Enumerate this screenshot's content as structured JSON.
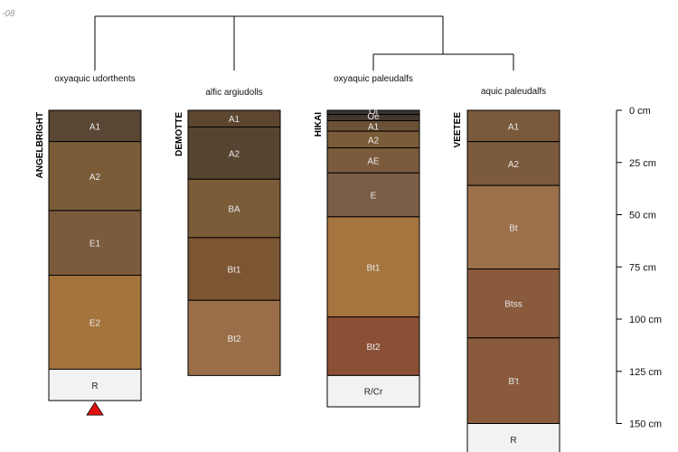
{
  "corner_label": "-08",
  "taxa": [
    {
      "label": "oxyaquic udorthents"
    },
    {
      "label": "alfic argiudolls"
    },
    {
      "label": "oxyaquic paleudalfs"
    },
    {
      "label": "aquic paleudalfs"
    }
  ],
  "profiles": [
    {
      "name": "ANGELBRIGHT",
      "horizons": [
        {
          "name": "A1",
          "top": 0,
          "bottom": 15,
          "color": "#5a4633"
        },
        {
          "name": "A2",
          "top": 15,
          "bottom": 48,
          "color": "#7a5c38"
        },
        {
          "name": "E1",
          "top": 48,
          "bottom": 79,
          "color": "#7c5a3c"
        },
        {
          "name": "E2",
          "top": 79,
          "bottom": 124,
          "color": "#a5743d"
        },
        {
          "name": "R",
          "top": 124,
          "bottom": 139,
          "color": "#f2f2f2"
        }
      ],
      "marker": "red-triangle"
    },
    {
      "name": "DEMOTTE",
      "horizons": [
        {
          "name": "A1",
          "top": 0,
          "bottom": 8,
          "color": "#5d4630"
        },
        {
          "name": "A2",
          "top": 8,
          "bottom": 33,
          "color": "#574430"
        },
        {
          "name": "BA",
          "top": 33,
          "bottom": 61,
          "color": "#7a5c38"
        },
        {
          "name": "Bt1",
          "top": 61,
          "bottom": 91,
          "color": "#7c5533"
        },
        {
          "name": "Bt2",
          "top": 91,
          "bottom": 127,
          "color": "#9a6e48"
        }
      ]
    },
    {
      "name": "HIKAI",
      "horizons": [
        {
          "name": "Oi",
          "top": 0,
          "bottom": 2,
          "color": "#3a3330"
        },
        {
          "name": "Oe",
          "top": 2,
          "bottom": 5,
          "color": "#433730"
        },
        {
          "name": "A1",
          "top": 5,
          "bottom": 10,
          "color": "#6b5236"
        },
        {
          "name": "A2",
          "top": 10,
          "bottom": 18,
          "color": "#7a5c38"
        },
        {
          "name": "AE",
          "top": 18,
          "bottom": 30,
          "color": "#7c5a3c"
        },
        {
          "name": "E",
          "top": 30,
          "bottom": 51,
          "color": "#7a5e48"
        },
        {
          "name": "Bt1",
          "top": 51,
          "bottom": 99,
          "color": "#a5743f"
        },
        {
          "name": "Bt2",
          "top": 99,
          "bottom": 127,
          "color": "#8a5035"
        },
        {
          "name": "R/Cr",
          "top": 127,
          "bottom": 142,
          "color": "#f2f2f2"
        }
      ]
    },
    {
      "name": "VEETEE",
      "horizons": [
        {
          "name": "A1",
          "top": 0,
          "bottom": 15,
          "color": "#7a5a3b"
        },
        {
          "name": "A2",
          "top": 15,
          "bottom": 36,
          "color": "#7c5a3c"
        },
        {
          "name": "Bt",
          "top": 36,
          "bottom": 76,
          "color": "#9c704a"
        },
        {
          "name": "Btss",
          "top": 76,
          "bottom": 109,
          "color": "#8a5a3d"
        },
        {
          "name": "B't",
          "top": 109,
          "bottom": 150,
          "color": "#8a5a3d"
        },
        {
          "name": "R",
          "top": 150,
          "bottom": 165,
          "color": "#f2f2f2"
        }
      ]
    }
  ],
  "depth_axis": {
    "ticks": [
      {
        "value": 0,
        "label": "0 cm"
      },
      {
        "value": 25,
        "label": "25 cm"
      },
      {
        "value": 50,
        "label": "50 cm"
      },
      {
        "value": 75,
        "label": "75 cm"
      },
      {
        "value": 100,
        "label": "100 cm"
      },
      {
        "value": 125,
        "label": "125 cm"
      },
      {
        "value": 150,
        "label": "150 cm"
      }
    ]
  }
}
